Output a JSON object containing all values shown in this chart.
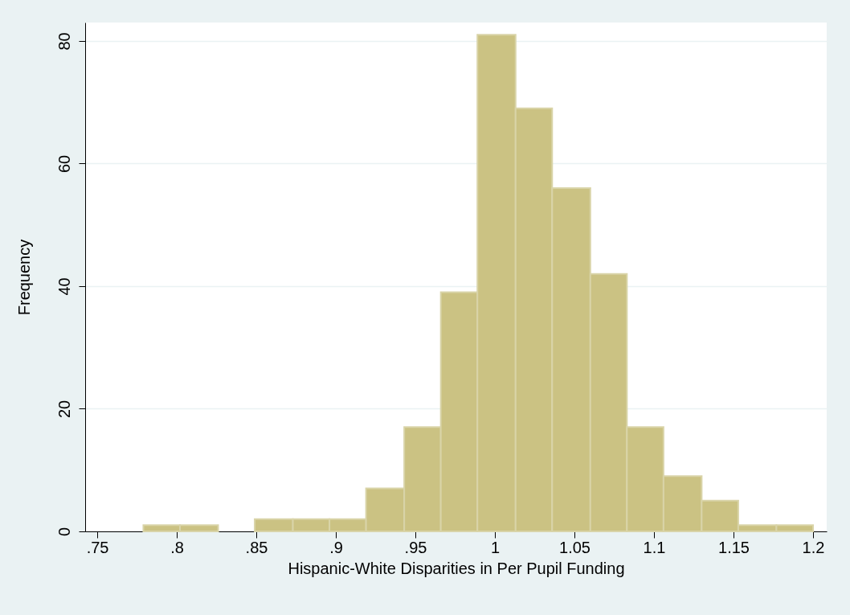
{
  "chart_data": {
    "type": "histogram",
    "xlabel": "Hispanic-White Disparities in Per Pupil Funding",
    "ylabel": "Frequency",
    "bins": [
      0.779,
      0.802,
      0.826,
      0.849,
      0.873,
      0.896,
      0.919,
      0.943,
      0.966,
      0.989,
      1.013,
      1.036,
      1.06,
      1.083,
      1.106,
      1.13,
      1.153,
      1.177,
      1.2
    ],
    "values": [
      1,
      1,
      0,
      2,
      2,
      2,
      7,
      17,
      39,
      81,
      69,
      56,
      42,
      17,
      9,
      5,
      1,
      1
    ],
    "color": "#cbc283",
    "xlim": [
      0.7424,
      1.2086
    ],
    "ylim": [
      0,
      83
    ],
    "xticks": [
      {
        "value": 0.75,
        "label": ".75"
      },
      {
        "value": 0.8,
        "label": ".8"
      },
      {
        "value": 0.85,
        "label": ".85"
      },
      {
        "value": 0.9,
        "label": ".9"
      },
      {
        "value": 0.95,
        "label": ".95"
      },
      1,
      1.05,
      1.1,
      1.15,
      1.2
    ],
    "yticks": [
      0,
      20,
      40,
      60,
      80
    ],
    "grid": "y"
  }
}
